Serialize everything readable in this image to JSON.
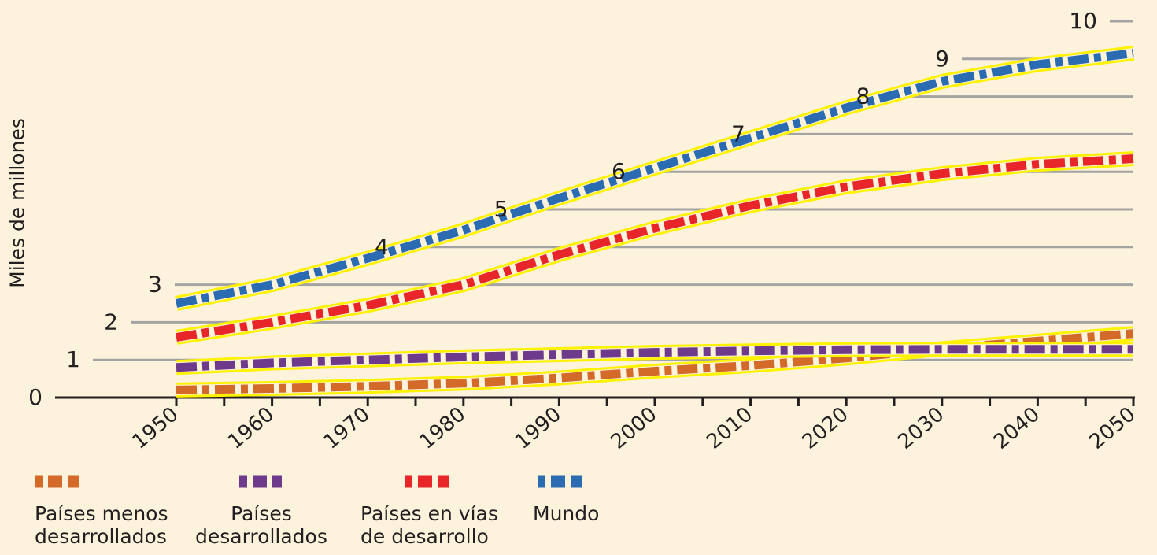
{
  "chart_data": {
    "type": "line",
    "title": "",
    "xlabel": "",
    "ylabel": "Miles de millones",
    "xlim": [
      1950,
      2050
    ],
    "ylim": [
      0,
      10
    ],
    "x_ticks": [
      "1950",
      "1960",
      "1970",
      "1980",
      "1990",
      "2000",
      "2010",
      "2020",
      "2030",
      "2040",
      "2050"
    ],
    "y_ticks": [
      "0",
      "1",
      "2",
      "3",
      "4",
      "5",
      "6",
      "7",
      "8",
      "9",
      "10"
    ],
    "grid": true,
    "legend_position": "bottom-left",
    "x": [
      1950,
      1960,
      1970,
      1980,
      1990,
      2000,
      2010,
      2020,
      2030,
      2040,
      2050
    ],
    "series": [
      {
        "name": "Países menos\ndesarrollados",
        "color": "#d36a2a",
        "values": [
          0.2,
          0.24,
          0.3,
          0.38,
          0.52,
          0.7,
          0.85,
          1.05,
          1.3,
          1.5,
          1.7
        ]
      },
      {
        "name": "Países\ndesarrollados",
        "color": "#6d3a8c",
        "values": [
          0.8,
          0.92,
          1.0,
          1.08,
          1.14,
          1.2,
          1.24,
          1.27,
          1.28,
          1.28,
          1.28
        ]
      },
      {
        "name": "Países en vías\nde desarrollo",
        "color": "#e8262a",
        "values": [
          1.6,
          2.0,
          2.45,
          3.0,
          3.8,
          4.5,
          5.1,
          5.6,
          5.95,
          6.2,
          6.35
        ]
      },
      {
        "name": "Mundo",
        "color": "#2a6bb1",
        "values": [
          2.5,
          3.0,
          3.7,
          4.45,
          5.3,
          6.1,
          6.9,
          7.7,
          8.4,
          8.85,
          9.15
        ]
      }
    ]
  }
}
